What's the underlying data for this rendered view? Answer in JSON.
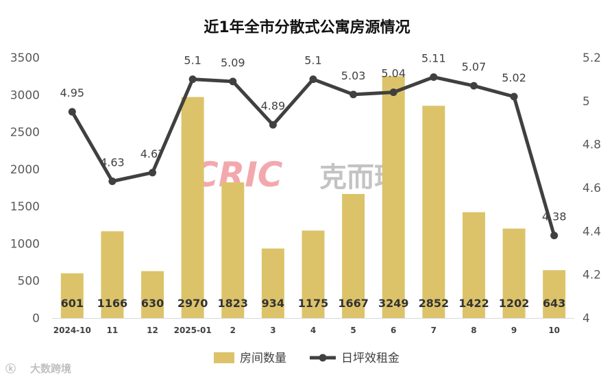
{
  "chart_data": {
    "type": "bar",
    "title": "近1年全市分散式公寓房源情况",
    "categories": [
      "2024-10",
      "11",
      "12",
      "2025-01",
      "2",
      "3",
      "4",
      "5",
      "6",
      "7",
      "8",
      "9",
      "10"
    ],
    "series": [
      {
        "name": "房间数量",
        "type": "bar",
        "axis": "left",
        "color": "#dcc36a",
        "values": [
          601,
          1166,
          630,
          2970,
          1823,
          934,
          1175,
          1667,
          3249,
          2852,
          1422,
          1202,
          643
        ]
      },
      {
        "name": "日坪效租金",
        "type": "line",
        "axis": "right",
        "color": "#404040",
        "values": [
          4.95,
          4.63,
          4.67,
          5.1,
          5.09,
          4.89,
          5.1,
          5.03,
          5.04,
          5.11,
          5.07,
          5.02,
          4.38
        ]
      }
    ],
    "ylim_left": [
      0,
      3500
    ],
    "yticks_left": [
      "0",
      "500",
      "1000",
      "1500",
      "2000",
      "2500",
      "3000",
      "3500"
    ],
    "ylim_right": [
      4,
      5.2
    ],
    "yticks_right": [
      "4",
      "4.2",
      "4.4",
      "4.6",
      "4.8",
      "5",
      "5.2"
    ],
    "legend_position": "bottom",
    "grid": false
  },
  "watermark": {
    "logo_text": "CRIC",
    "brand_text": "克而瑞",
    "source_text": "大数跨境"
  }
}
